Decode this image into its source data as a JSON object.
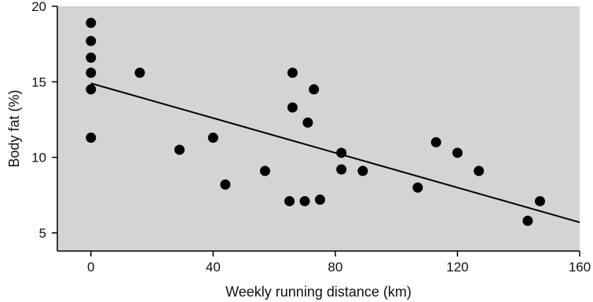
{
  "chart_data": {
    "type": "scatter",
    "title": "",
    "xlabel": "Weekly running distance (km)",
    "ylabel": "Body fat (%)",
    "xlim": [
      -11,
      160
    ],
    "ylim": [
      3.8,
      20
    ],
    "xticks": [
      0,
      40,
      80,
      120,
      160
    ],
    "yticks": [
      5,
      10,
      15,
      20
    ],
    "grid": false,
    "legend": "none",
    "colors": {
      "plot_background": "#d4d4d4",
      "points": "#000000",
      "line": "#000000",
      "axes": "#000000"
    },
    "points": [
      {
        "x": 0,
        "y": 18.9
      },
      {
        "x": 0,
        "y": 17.7
      },
      {
        "x": 0,
        "y": 16.6
      },
      {
        "x": 0,
        "y": 15.6
      },
      {
        "x": 0,
        "y": 14.5
      },
      {
        "x": 0,
        "y": 11.3
      },
      {
        "x": 16,
        "y": 15.6
      },
      {
        "x": 29,
        "y": 10.5
      },
      {
        "x": 40,
        "y": 11.3
      },
      {
        "x": 44,
        "y": 8.2
      },
      {
        "x": 57,
        "y": 9.1
      },
      {
        "x": 65,
        "y": 7.1
      },
      {
        "x": 66,
        "y": 15.6
      },
      {
        "x": 66,
        "y": 13.3
      },
      {
        "x": 70,
        "y": 7.1
      },
      {
        "x": 71,
        "y": 12.3
      },
      {
        "x": 73,
        "y": 14.5
      },
      {
        "x": 75,
        "y": 7.2
      },
      {
        "x": 82,
        "y": 10.3
      },
      {
        "x": 82,
        "y": 9.2
      },
      {
        "x": 89,
        "y": 9.1
      },
      {
        "x": 107,
        "y": 8.0
      },
      {
        "x": 113,
        "y": 11.0
      },
      {
        "x": 120,
        "y": 10.3
      },
      {
        "x": 127,
        "y": 9.1
      },
      {
        "x": 143,
        "y": 5.8
      },
      {
        "x": 147,
        "y": 7.1
      }
    ],
    "trendline": {
      "x": [
        0,
        160
      ],
      "y": [
        14.9,
        5.7
      ]
    }
  }
}
